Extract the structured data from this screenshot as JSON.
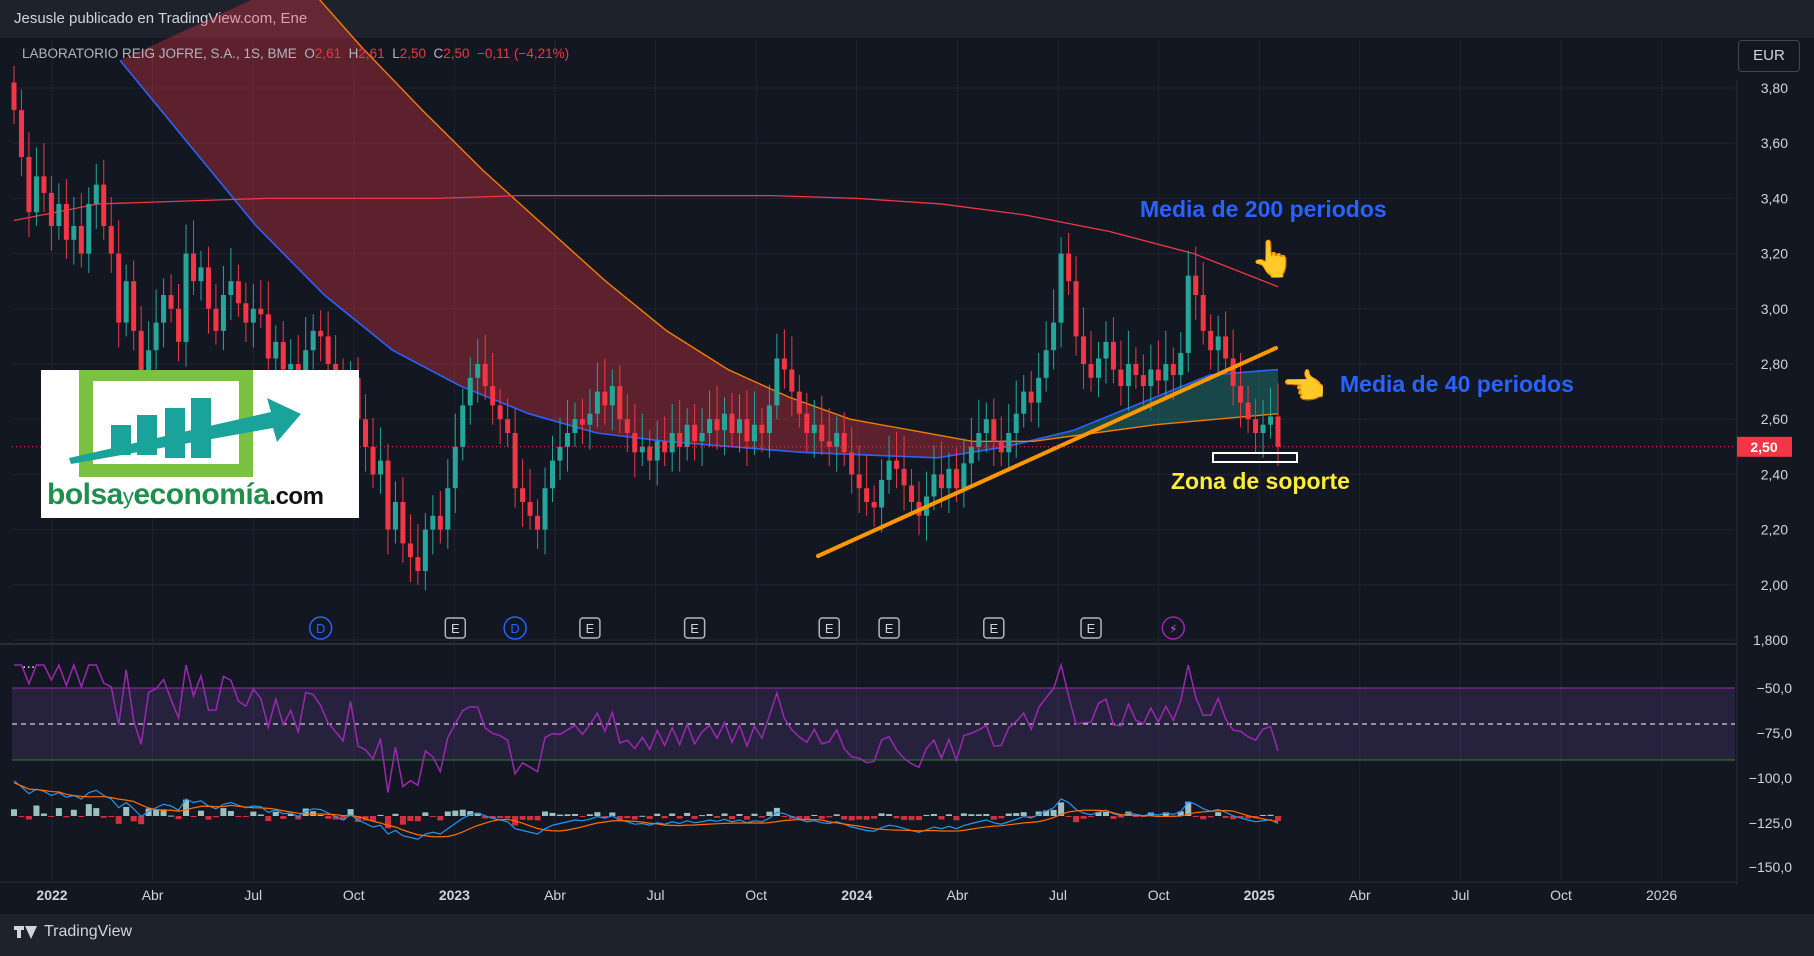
{
  "publisher": "Jesusle publicado en TradingView.com, Ene",
  "legend": {
    "symbol": "LABORATORIO REIG JOFRE, S.A., 1S, BME",
    "o_label": "O",
    "o_value": "2,61",
    "h_label": "H",
    "h_value": "2,61",
    "l_label": "L",
    "l_value": "2,50",
    "c_label": "C",
    "c_value": "2,50",
    "change": "−0,11 (−4,21%)"
  },
  "currency": "EUR",
  "more_menu": "...",
  "brand": "TradingView",
  "watermark": {
    "text_main": "bolsa",
    "text_y": "y",
    "text_econ": "economía",
    "text_com": ".com"
  },
  "annotations": {
    "ma200": "Media de 200 periodos",
    "ma40": "Media de 40 periodos",
    "support": "Zona de soporte",
    "hand_up": "👆",
    "hand_left": "👈"
  },
  "colors": {
    "up": "#26a69a",
    "down": "#f23645",
    "ma200": "#f23645",
    "ma40": "#2962ff",
    "ma_orange": "#f57c00",
    "trend": "#ff9800",
    "rsi": "#9c27b0",
    "price_tag": "#f23645"
  },
  "chart_data": {
    "type": "candlestick",
    "x_labels": [
      "2022",
      "Abr",
      "Jul",
      "Oct",
      "2023",
      "Abr",
      "Jul",
      "Oct",
      "2024",
      "Abr",
      "Jul",
      "Oct",
      "2025",
      "Abr",
      "Jul",
      "Oct",
      "2026"
    ],
    "x_labels_bold": [
      "2022",
      "2023",
      "2024",
      "2025"
    ],
    "price_axis": [
      "3,80",
      "3,60",
      "3,40",
      "3,20",
      "3,00",
      "2,80",
      "2,60",
      "2,40",
      "2,20",
      "2,00",
      "1,800"
    ],
    "price_axis_values": [
      3.8,
      3.6,
      3.4,
      3.2,
      3.0,
      2.8,
      2.6,
      2.4,
      2.2,
      2.0,
      1.8
    ],
    "last_price": "2,50",
    "last_price_value": 2.5,
    "ylim": [
      1.8,
      3.8
    ],
    "events": [
      {
        "label": "D",
        "week": 41
      },
      {
        "label": "E",
        "week": 59
      },
      {
        "label": "D",
        "week": 67
      },
      {
        "label": "E",
        "week": 77
      },
      {
        "label": "E",
        "week": 91
      },
      {
        "label": "E",
        "week": 109
      },
      {
        "label": "E",
        "week": 117
      },
      {
        "label": "E",
        "week": 131
      },
      {
        "label": "E",
        "week": 144
      },
      {
        "label": "⚡",
        "week": 155
      }
    ],
    "ohlc_close_weekly": [
      3.72,
      3.55,
      3.35,
      3.48,
      3.42,
      3.3,
      3.38,
      3.25,
      3.3,
      3.2,
      3.38,
      3.45,
      3.3,
      3.2,
      2.95,
      3.1,
      2.92,
      2.7,
      2.85,
      2.95,
      3.05,
      3.0,
      2.88,
      3.2,
      3.1,
      3.15,
      3.0,
      2.92,
      3.05,
      3.1,
      3.02,
      2.95,
      3.0,
      2.98,
      2.82,
      2.88,
      2.78,
      2.8,
      2.7,
      2.85,
      2.92,
      2.9,
      2.8,
      2.7,
      2.6,
      2.75,
      2.6,
      2.5,
      2.4,
      2.45,
      2.2,
      2.3,
      2.15,
      2.1,
      2.05,
      2.2,
      2.25,
      2.2,
      2.35,
      2.5,
      2.65,
      2.75,
      2.8,
      2.72,
      2.65,
      2.6,
      2.55,
      2.35,
      2.3,
      2.25,
      2.2,
      2.35,
      2.45,
      2.5,
      2.55,
      2.6,
      2.58,
      2.62,
      2.7,
      2.65,
      2.72,
      2.6,
      2.55,
      2.48,
      2.5,
      2.45,
      2.52,
      2.48,
      2.55,
      2.5,
      2.58,
      2.52,
      2.55,
      2.6,
      2.56,
      2.62,
      2.55,
      2.6,
      2.52,
      2.58,
      2.55,
      2.65,
      2.82,
      2.78,
      2.7,
      2.62,
      2.55,
      2.58,
      2.52,
      2.5,
      2.55,
      2.48,
      2.4,
      2.35,
      2.3,
      2.28,
      2.38,
      2.45,
      2.42,
      2.36,
      2.3,
      2.25,
      2.32,
      2.4,
      2.35,
      2.42,
      2.35,
      2.44,
      2.5,
      2.55,
      2.6,
      2.52,
      2.48,
      2.55,
      2.62,
      2.7,
      2.66,
      2.75,
      2.85,
      2.95,
      3.2,
      3.1,
      2.9,
      2.8,
      2.75,
      2.82,
      2.88,
      2.78,
      2.72,
      2.8,
      2.76,
      2.72,
      2.78,
      2.74,
      2.8,
      2.76,
      2.84,
      3.12,
      3.05,
      2.92,
      2.85,
      2.9,
      2.82,
      2.72,
      2.66,
      2.6,
      2.55,
      2.58,
      2.61,
      2.5
    ],
    "ma200": [
      3.32,
      3.38,
      3.39,
      3.4,
      3.4,
      3.4,
      3.41,
      3.41,
      3.41,
      3.41,
      3.4,
      3.38,
      3.34,
      3.28,
      3.2,
      3.08
    ],
    "ma40_blue": [
      3.9,
      3.6,
      3.3,
      3.05,
      2.85,
      2.72,
      2.62,
      2.55,
      2.52,
      2.5,
      2.48,
      2.47,
      2.46,
      2.5,
      2.56,
      2.66,
      2.76,
      2.78
    ],
    "ma_orange": [
      4.2,
      3.95,
      3.72,
      3.5,
      3.3,
      3.1,
      2.92,
      2.78,
      2.68,
      2.6,
      2.56,
      2.52,
      2.52,
      2.55,
      2.58,
      2.6,
      2.62
    ],
    "rsi_axis": [
      "−50,0",
      "−75,0",
      "−100,0",
      "−125,0",
      "−150,0"
    ],
    "rsi_axis_values": [
      -50,
      -75,
      -100,
      -125,
      -150
    ]
  }
}
